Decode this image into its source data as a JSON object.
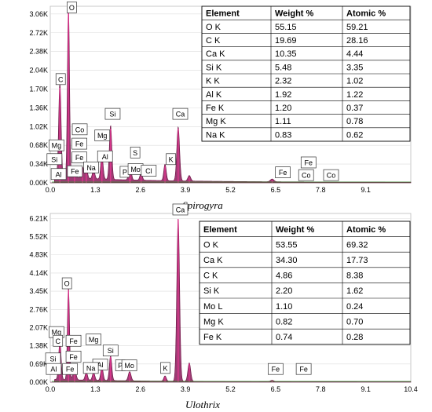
{
  "chart_data": [
    {
      "type": "line",
      "caption": "Spirogyra",
      "xlabel": "",
      "ylabel": "",
      "xlim": [
        0,
        10.4
      ],
      "ylim": [
        0,
        3.2
      ],
      "x_ticks": [
        "0.0",
        "1.3",
        "2.6",
        "3.9",
        "5.2",
        "6.5",
        "7.8",
        "9.1"
      ],
      "x_tick_values": [
        0.0,
        1.3,
        2.6,
        3.9,
        5.2,
        6.5,
        7.8,
        9.1
      ],
      "y_ticks": [
        "0.00K",
        "0.34K",
        "0.68K",
        "1.02K",
        "1.36K",
        "1.70K",
        "2.04K",
        "2.38K",
        "2.72K",
        "3.06K"
      ],
      "y_tick_values": [
        0.0,
        0.34,
        0.68,
        1.02,
        1.36,
        1.7,
        2.04,
        2.38,
        2.72,
        3.06
      ],
      "units": "K counts",
      "peaks": [
        {
          "x": 0.277,
          "y": 1.72,
          "w": 0.035
        },
        {
          "x": 0.525,
          "y": 3.12,
          "w": 0.03
        },
        {
          "x": 0.7,
          "y": 0.22,
          "w": 0.04
        },
        {
          "x": 0.93,
          "y": 0.2,
          "w": 0.04
        },
        {
          "x": 1.04,
          "y": 0.18,
          "w": 0.035
        },
        {
          "x": 1.25,
          "y": 0.16,
          "w": 0.035
        },
        {
          "x": 1.49,
          "y": 0.42,
          "w": 0.035
        },
        {
          "x": 1.74,
          "y": 0.98,
          "w": 0.035
        },
        {
          "x": 2.29,
          "y": 0.16,
          "w": 0.035
        },
        {
          "x": 2.31,
          "y": 0.14,
          "w": 0.035
        },
        {
          "x": 2.62,
          "y": 0.13,
          "w": 0.035
        },
        {
          "x": 3.31,
          "y": 0.3,
          "w": 0.035
        },
        {
          "x": 3.69,
          "y": 0.98,
          "w": 0.04
        },
        {
          "x": 4.01,
          "y": 0.1,
          "w": 0.04
        },
        {
          "x": 6.4,
          "y": 0.05,
          "w": 0.05
        }
      ],
      "peak_labels": [
        {
          "text": "O",
          "x": 0.62,
          "y": 3.18
        },
        {
          "text": "C",
          "x": 0.3,
          "y": 1.88
        },
        {
          "text": "Co",
          "x": 0.85,
          "y": 0.97
        },
        {
          "text": "Mg",
          "x": 1.5,
          "y": 0.86
        },
        {
          "text": "Si",
          "x": 1.8,
          "y": 1.25
        },
        {
          "text": "Ca",
          "x": 3.75,
          "y": 1.25
        },
        {
          "text": "Mg",
          "x": 0.18,
          "y": 0.68
        },
        {
          "text": "Fe",
          "x": 0.84,
          "y": 0.71
        },
        {
          "text": "Si",
          "x": 0.12,
          "y": 0.43
        },
        {
          "text": "Fe",
          "x": 0.84,
          "y": 0.46
        },
        {
          "text": "Al",
          "x": 1.58,
          "y": 0.48
        },
        {
          "text": "S",
          "x": 2.45,
          "y": 0.55
        },
        {
          "text": "Na",
          "x": 1.18,
          "y": 0.28
        },
        {
          "text": "Fe",
          "x": 0.71,
          "y": 0.21
        },
        {
          "text": "Al",
          "x": 0.24,
          "y": 0.16
        },
        {
          "text": "P",
          "x": 2.15,
          "y": 0.2
        },
        {
          "text": "Mo",
          "x": 2.46,
          "y": 0.25
        },
        {
          "text": "Cl",
          "x": 2.84,
          "y": 0.22
        },
        {
          "text": "K",
          "x": 3.48,
          "y": 0.43
        },
        {
          "text": "Fe",
          "x": 6.71,
          "y": 0.19
        },
        {
          "text": "Fe",
          "x": 7.45,
          "y": 0.37
        },
        {
          "text": "Co",
          "x": 7.38,
          "y": 0.14
        },
        {
          "text": "Co",
          "x": 8.1,
          "y": 0.14
        }
      ],
      "table": {
        "headers": [
          "Element",
          "Weight %",
          "Atomic %"
        ],
        "rows": [
          [
            "O K",
            "55.15",
            "59.21"
          ],
          [
            "C K",
            "19.69",
            "28.16"
          ],
          [
            "Ca K",
            "10.35",
            "4.44"
          ],
          [
            "Si K",
            "5.48",
            "3.35"
          ],
          [
            "K K",
            "2.32",
            "1.02"
          ],
          [
            "Al K",
            "1.92",
            "1.22"
          ],
          [
            "Fe K",
            "1.20",
            "0.37"
          ],
          [
            "Mg K",
            "1.11",
            "0.78"
          ],
          [
            "Na K",
            "0.83",
            "0.62"
          ]
        ]
      },
      "colors": {
        "fill": "#8b1a5a",
        "peak": "#e0358f",
        "outline": "#6a0f40",
        "grid": "#dcdcdc"
      }
    },
    {
      "type": "line",
      "caption": "Ulothrix",
      "xlabel": "",
      "ylabel": "",
      "xlim": [
        0,
        10.4
      ],
      "ylim": [
        0,
        6.4
      ],
      "x_ticks": [
        "0.0",
        "1.3",
        "2.6",
        "3.9",
        "5.2",
        "6.5",
        "7.8",
        "9.1",
        "10.4"
      ],
      "x_tick_values": [
        0.0,
        1.3,
        2.6,
        3.9,
        5.2,
        6.5,
        7.8,
        9.1,
        10.4
      ],
      "y_ticks": [
        "0.00K",
        "0.69K",
        "1.38K",
        "2.07K",
        "2.76K",
        "3.45K",
        "4.14K",
        "4.83K",
        "5.52K",
        "6.21K"
      ],
      "y_tick_values": [
        0.0,
        0.69,
        1.38,
        2.07,
        2.76,
        3.45,
        4.14,
        4.83,
        5.52,
        6.21
      ],
      "units": "K counts",
      "peaks": [
        {
          "x": 0.277,
          "y": 1.45,
          "w": 0.035
        },
        {
          "x": 0.525,
          "y": 3.5,
          "w": 0.03
        },
        {
          "x": 0.7,
          "y": 0.45,
          "w": 0.04
        },
        {
          "x": 1.04,
          "y": 0.3,
          "w": 0.035
        },
        {
          "x": 1.25,
          "y": 0.3,
          "w": 0.035
        },
        {
          "x": 1.49,
          "y": 0.5,
          "w": 0.035
        },
        {
          "x": 1.74,
          "y": 0.95,
          "w": 0.035
        },
        {
          "x": 2.29,
          "y": 0.35,
          "w": 0.04
        },
        {
          "x": 3.31,
          "y": 0.2,
          "w": 0.035
        },
        {
          "x": 3.69,
          "y": 6.18,
          "w": 0.04
        },
        {
          "x": 4.01,
          "y": 0.7,
          "w": 0.04
        },
        {
          "x": 6.4,
          "y": 0.05,
          "w": 0.05
        }
      ],
      "peak_labels": [
        {
          "text": "Ca",
          "x": 3.75,
          "y": 6.55
        },
        {
          "text": "O",
          "x": 0.48,
          "y": 3.75
        },
        {
          "text": "Mg",
          "x": 0.18,
          "y": 1.9
        },
        {
          "text": "C",
          "x": 0.22,
          "y": 1.57
        },
        {
          "text": "Fe",
          "x": 0.67,
          "y": 1.57
        },
        {
          "text": "Mg",
          "x": 1.25,
          "y": 1.62
        },
        {
          "text": "Si",
          "x": 1.74,
          "y": 1.2
        },
        {
          "text": "Fe",
          "x": 0.67,
          "y": 0.97
        },
        {
          "text": "Al",
          "x": 1.44,
          "y": 0.67
        },
        {
          "text": "Si",
          "x": 0.08,
          "y": 0.9
        },
        {
          "text": "P",
          "x": 2.02,
          "y": 0.64
        },
        {
          "text": "Mo",
          "x": 2.28,
          "y": 0.64
        },
        {
          "text": "Na",
          "x": 1.17,
          "y": 0.54
        },
        {
          "text": "K",
          "x": 3.32,
          "y": 0.54
        },
        {
          "text": "Al",
          "x": 0.1,
          "y": 0.5
        },
        {
          "text": "Fe",
          "x": 0.57,
          "y": 0.5
        },
        {
          "text": "Fe",
          "x": 6.5,
          "y": 0.5
        },
        {
          "text": "Fe",
          "x": 7.31,
          "y": 0.5
        }
      ],
      "table": {
        "headers": [
          "Element",
          "Weight %",
          "Atomic %"
        ],
        "rows": [
          [
            "O K",
            "53.55",
            "69.32"
          ],
          [
            "Ca K",
            "34.30",
            "17.73"
          ],
          [
            "C K",
            "4.86",
            "8.38"
          ],
          [
            "Si K",
            "2.20",
            "1.62"
          ],
          [
            "Mo L",
            "1.10",
            "0.24"
          ],
          [
            "Mg K",
            "0.82",
            "0.70"
          ],
          [
            "Fe K",
            "0.74",
            "0.28"
          ]
        ]
      },
      "colors": {
        "fill": "#8b1a5a",
        "peak": "#e0358f",
        "outline": "#6a0f40",
        "grid": "#dcdcdc"
      }
    }
  ]
}
